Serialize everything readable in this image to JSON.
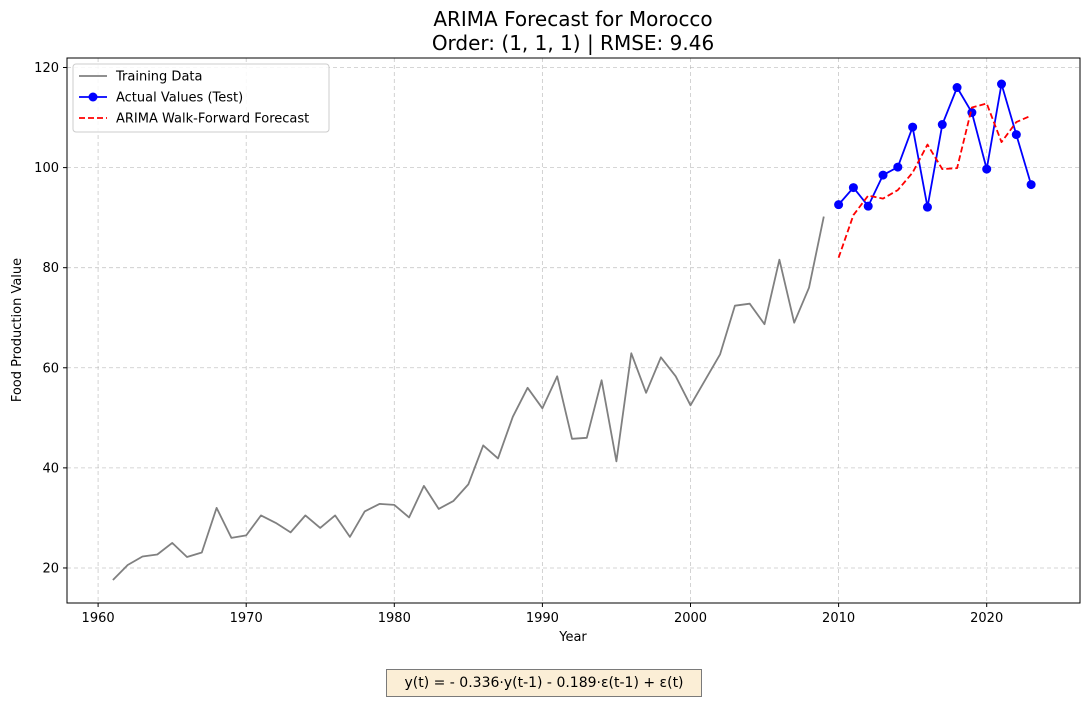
{
  "chart_data": {
    "type": "line",
    "title_lines": [
      "ARIMA Forecast for Morocco",
      "Order: (1, 1, 1) | RMSE: 9.46"
    ],
    "xlabel": "Year",
    "ylabel": "Food Production Value",
    "xlim": [
      1957.9,
      2026.3
    ],
    "ylim": [
      13,
      121.9
    ],
    "xticks": [
      1960,
      1970,
      1980,
      1990,
      2000,
      2010,
      2020
    ],
    "yticks": [
      20,
      40,
      60,
      80,
      100,
      120
    ],
    "grid": true,
    "legend_position": "top-left",
    "series": [
      {
        "name": "Training Data",
        "color": "#808080",
        "style": "solid",
        "marker": "none",
        "x": [
          1961,
          1962,
          1963,
          1964,
          1965,
          1966,
          1967,
          1968,
          1969,
          1970,
          1971,
          1972,
          1973,
          1974,
          1975,
          1976,
          1977,
          1978,
          1979,
          1980,
          1981,
          1982,
          1983,
          1984,
          1985,
          1986,
          1987,
          1988,
          1989,
          1990,
          1991,
          1992,
          1993,
          1994,
          1995,
          1996,
          1997,
          1998,
          1999,
          2000,
          2001,
          2002,
          2003,
          2004,
          2005,
          2006,
          2007,
          2008,
          2009
        ],
        "y": [
          17.6,
          20.6,
          22.3,
          22.7,
          25.0,
          22.2,
          23.1,
          32.0,
          26.0,
          26.5,
          30.5,
          29.0,
          27.1,
          30.5,
          28.0,
          30.5,
          26.2,
          31.3,
          32.8,
          32.6,
          30.1,
          36.4,
          31.8,
          33.4,
          36.7,
          44.5,
          41.9,
          50.2,
          56.0,
          51.9,
          58.3,
          45.8,
          46.0,
          57.5,
          41.3,
          62.9,
          55.0,
          62.1,
          58.3,
          52.5,
          57.6,
          62.7,
          72.4,
          72.8,
          68.7,
          81.6,
          69.0,
          76.0,
          90.2
        ]
      },
      {
        "name": "Actual Values (Test)",
        "color": "#0000ff",
        "style": "solid",
        "marker": "circle",
        "x": [
          2010,
          2011,
          2012,
          2013,
          2014,
          2015,
          2016,
          2017,
          2018,
          2019,
          2020,
          2021,
          2022,
          2023
        ],
        "y": [
          92.6,
          96.0,
          92.3,
          98.5,
          100.1,
          108.1,
          92.1,
          108.6,
          116.0,
          111.0,
          99.7,
          116.7,
          106.6,
          96.6
        ]
      },
      {
        "name": "ARIMA Walk-Forward Forecast",
        "color": "#ff0000",
        "style": "dashed",
        "marker": "none",
        "x": [
          2010,
          2011,
          2012,
          2013,
          2014,
          2015,
          2016,
          2017,
          2018,
          2019,
          2020,
          2021,
          2022,
          2023
        ],
        "y": [
          82.0,
          90.5,
          94.4,
          93.8,
          95.5,
          99.0,
          104.6,
          99.7,
          99.9,
          112.0,
          112.8,
          105.1,
          109.1,
          110.4
        ]
      }
    ]
  },
  "equation": "y(t) = - 0.336·y(t-1) - 0.189·ε(t-1) + ε(t)"
}
